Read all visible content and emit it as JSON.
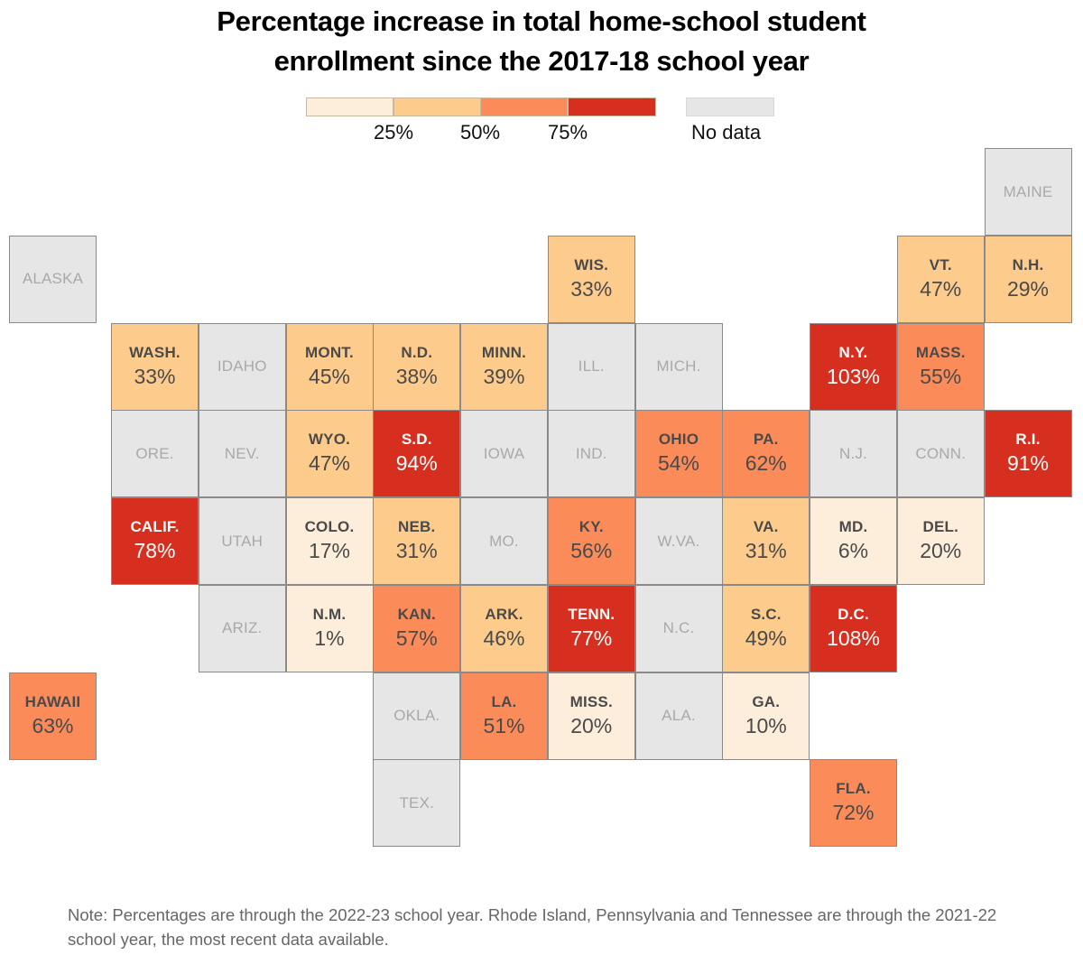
{
  "title_line1": "Percentage increase in total home-school student",
  "title_line2": "enrollment since the 2017-18 school year",
  "colors": {
    "bin1": "#fdeedb",
    "bin2": "#fdcb8c",
    "bin3": "#fc8b5a",
    "bin4": "#d62f1f",
    "nodata": "#e6e6e6"
  },
  "legend": {
    "ticks": [
      "25%",
      "50%",
      "75%"
    ],
    "nodata_label": "No data"
  },
  "note": "Note: Percentages are through the 2022-23 school year. Rhode Island, Pennsylvania and Tennessee are through the 2021-22 school year, the most recent data available.",
  "chart_data": {
    "type": "heatmap",
    "title": "Percentage increase in total home-school student enrollment since the 2017-18 school year",
    "subtype": "tile-grid-map",
    "bins": [
      0,
      25,
      50,
      75
    ],
    "bin_labels": [
      "25%",
      "50%",
      "75%"
    ],
    "unit": "%",
    "states": [
      {
        "abbr": "MAINE",
        "value": null,
        "row": 0,
        "col": 11
      },
      {
        "abbr": "ALASKA",
        "value": null,
        "row": 1,
        "col": 0
      },
      {
        "abbr": "WIS.",
        "value": 33,
        "row": 1,
        "col": 6
      },
      {
        "abbr": "VT.",
        "value": 47,
        "row": 1,
        "col": 10
      },
      {
        "abbr": "N.H.",
        "value": 29,
        "row": 1,
        "col": 11
      },
      {
        "abbr": "WASH.",
        "value": 33,
        "row": 2,
        "col": 1
      },
      {
        "abbr": "IDAHO",
        "value": null,
        "row": 2,
        "col": 2
      },
      {
        "abbr": "MONT.",
        "value": 45,
        "row": 2,
        "col": 3
      },
      {
        "abbr": "N.D.",
        "value": 38,
        "row": 2,
        "col": 4
      },
      {
        "abbr": "MINN.",
        "value": 39,
        "row": 2,
        "col": 5
      },
      {
        "abbr": "ILL.",
        "value": null,
        "row": 2,
        "col": 6
      },
      {
        "abbr": "MICH.",
        "value": null,
        "row": 2,
        "col": 7
      },
      {
        "abbr": "N.Y.",
        "value": 103,
        "row": 2,
        "col": 9
      },
      {
        "abbr": "MASS.",
        "value": 55,
        "row": 2,
        "col": 10
      },
      {
        "abbr": "ORE.",
        "value": null,
        "row": 3,
        "col": 1
      },
      {
        "abbr": "NEV.",
        "value": null,
        "row": 3,
        "col": 2
      },
      {
        "abbr": "WYO.",
        "value": 47,
        "row": 3,
        "col": 3
      },
      {
        "abbr": "S.D.",
        "value": 94,
        "row": 3,
        "col": 4
      },
      {
        "abbr": "IOWA",
        "value": null,
        "row": 3,
        "col": 5
      },
      {
        "abbr": "IND.",
        "value": null,
        "row": 3,
        "col": 6
      },
      {
        "abbr": "OHIO",
        "value": 54,
        "row": 3,
        "col": 7
      },
      {
        "abbr": "PA.",
        "value": 62,
        "row": 3,
        "col": 8
      },
      {
        "abbr": "N.J.",
        "value": null,
        "row": 3,
        "col": 9
      },
      {
        "abbr": "CONN.",
        "value": null,
        "row": 3,
        "col": 10
      },
      {
        "abbr": "R.I.",
        "value": 91,
        "row": 3,
        "col": 11
      },
      {
        "abbr": "CALIF.",
        "value": 78,
        "row": 4,
        "col": 1
      },
      {
        "abbr": "UTAH",
        "value": null,
        "row": 4,
        "col": 2
      },
      {
        "abbr": "COLO.",
        "value": 17,
        "row": 4,
        "col": 3
      },
      {
        "abbr": "NEB.",
        "value": 31,
        "row": 4,
        "col": 4
      },
      {
        "abbr": "MO.",
        "value": null,
        "row": 4,
        "col": 5
      },
      {
        "abbr": "KY.",
        "value": 56,
        "row": 4,
        "col": 6
      },
      {
        "abbr": "W.VA.",
        "value": null,
        "row": 4,
        "col": 7
      },
      {
        "abbr": "VA.",
        "value": 31,
        "row": 4,
        "col": 8
      },
      {
        "abbr": "MD.",
        "value": 6,
        "row": 4,
        "col": 9
      },
      {
        "abbr": "DEL.",
        "value": 20,
        "row": 4,
        "col": 10
      },
      {
        "abbr": "ARIZ.",
        "value": null,
        "row": 5,
        "col": 2
      },
      {
        "abbr": "N.M.",
        "value": 1,
        "row": 5,
        "col": 3
      },
      {
        "abbr": "KAN.",
        "value": 57,
        "row": 5,
        "col": 4
      },
      {
        "abbr": "ARK.",
        "value": 46,
        "row": 5,
        "col": 5
      },
      {
        "abbr": "TENN.",
        "value": 77,
        "row": 5,
        "col": 6
      },
      {
        "abbr": "N.C.",
        "value": null,
        "row": 5,
        "col": 7
      },
      {
        "abbr": "S.C.",
        "value": 49,
        "row": 5,
        "col": 8
      },
      {
        "abbr": "D.C.",
        "value": 108,
        "row": 5,
        "col": 9
      },
      {
        "abbr": "HAWAII",
        "value": 63,
        "row": 6,
        "col": 0
      },
      {
        "abbr": "OKLA.",
        "value": null,
        "row": 6,
        "col": 4
      },
      {
        "abbr": "LA.",
        "value": 51,
        "row": 6,
        "col": 5
      },
      {
        "abbr": "MISS.",
        "value": 20,
        "row": 6,
        "col": 6
      },
      {
        "abbr": "ALA.",
        "value": null,
        "row": 6,
        "col": 7
      },
      {
        "abbr": "GA.",
        "value": 10,
        "row": 6,
        "col": 8
      },
      {
        "abbr": "TEX.",
        "value": null,
        "row": 7,
        "col": 4
      },
      {
        "abbr": "FLA.",
        "value": 72,
        "row": 7,
        "col": 9
      }
    ]
  }
}
